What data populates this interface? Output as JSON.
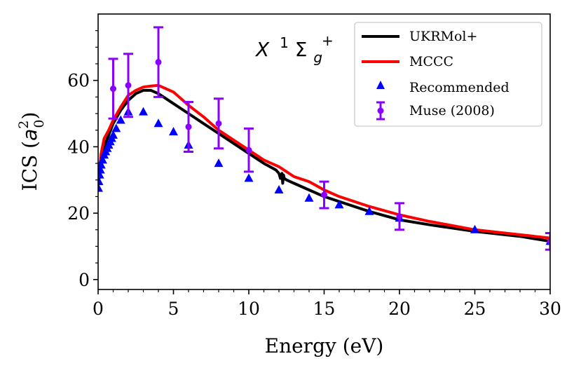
{
  "chart_data": {
    "type": "line",
    "annotation": {
      "main": "X",
      "sup1": "1",
      "sigma": "Σ",
      "sub": "g",
      "sup2": "+"
    },
    "xlabel": "Energy (eV)",
    "ylabel": {
      "prefix": "ICS (",
      "var": "a",
      "sub": "0",
      "sup": "2",
      "suffix": ")"
    },
    "xlim": [
      0,
      30
    ],
    "ylim": [
      -3,
      80
    ],
    "xticks": [
      0,
      5,
      10,
      15,
      20,
      25,
      30
    ],
    "yticks": [
      0,
      20,
      40,
      60
    ],
    "xtick_labels": [
      "0",
      "5",
      "10",
      "15",
      "20",
      "25",
      "30"
    ],
    "ytick_labels": [
      "0",
      "20",
      "40",
      "60"
    ],
    "series": [
      {
        "name": "UKRMol+",
        "kind": "line",
        "color": "#000000",
        "x": [
          0.05,
          0.2,
          0.4,
          0.7,
          1.0,
          1.5,
          2.0,
          2.5,
          3.0,
          3.5,
          4.0,
          5.0,
          6.0,
          7.0,
          8.0,
          9.0,
          10.0,
          11.0,
          11.8,
          12.0,
          12.1,
          12.2,
          12.25,
          12.3,
          12.35,
          12.5,
          13.0,
          14.0,
          15.0,
          16.0,
          18.0,
          20.0,
          22.0,
          25.0,
          28.0,
          30.0
        ],
        "y": [
          30.0,
          36.0,
          40.0,
          43.5,
          47.0,
          51.0,
          54.0,
          56.0,
          57.0,
          57.0,
          56.0,
          53.0,
          50.0,
          47.0,
          44.0,
          41.0,
          38.0,
          35.0,
          33.0,
          32.0,
          30.5,
          32.0,
          29.0,
          31.5,
          30.5,
          30.0,
          29.0,
          27.0,
          25.0,
          23.5,
          20.5,
          18.0,
          16.5,
          14.5,
          13.0,
          11.5
        ]
      },
      {
        "name": "MCCC",
        "kind": "line",
        "color": "#ff0000",
        "x": [
          0.05,
          0.2,
          0.4,
          0.7,
          1.0,
          1.5,
          2.0,
          2.5,
          3.0,
          3.5,
          4.0,
          5.0,
          6.0,
          7.0,
          8.0,
          9.0,
          10.0,
          11.0,
          12.0,
          12.5,
          13.0,
          14.0,
          15.0,
          16.0,
          18.0,
          20.0,
          22.0,
          25.0,
          28.0,
          30.0
        ],
        "y": [
          31.0,
          38.0,
          42.5,
          45.0,
          48.0,
          52.0,
          55.5,
          57.0,
          58.0,
          58.3,
          58.5,
          56.5,
          52.5,
          49.0,
          45.0,
          42.0,
          39.0,
          36.0,
          34.0,
          32.5,
          31.0,
          29.5,
          27.0,
          25.0,
          22.0,
          19.5,
          17.5,
          15.0,
          13.5,
          12.5
        ]
      },
      {
        "name": "Recommended",
        "kind": "scatter",
        "marker": "triangle",
        "color": "#0000ff",
        "x": [
          0.02,
          0.05,
          0.1,
          0.15,
          0.2,
          0.3,
          0.4,
          0.5,
          0.6,
          0.7,
          0.8,
          0.9,
          1.0,
          1.2,
          1.5,
          2.0,
          3.0,
          4.0,
          5.0,
          6.0,
          8.0,
          10.0,
          12.0,
          14.0,
          16.0,
          18.0,
          20.0,
          25.0,
          30.0
        ],
        "y": [
          27.5,
          29.5,
          31.5,
          33.0,
          34.5,
          36.0,
          37.5,
          38.5,
          39.5,
          40.5,
          41.5,
          42.5,
          43.5,
          45.5,
          48.0,
          50.5,
          50.5,
          47.0,
          44.5,
          40.5,
          35.0,
          30.5,
          27.0,
          24.5,
          22.5,
          20.5,
          18.5,
          15.0,
          11.5
        ]
      },
      {
        "name": "Muse (2008)",
        "kind": "errorbar",
        "color": "#8a00ff",
        "x": [
          1.0,
          2.0,
          4.0,
          6.0,
          8.0,
          10.0,
          15.0,
          20.0,
          30.0
        ],
        "y": [
          57.5,
          58.5,
          65.5,
          46.0,
          47.0,
          39.0,
          25.5,
          19.0,
          11.5
        ],
        "err": [
          9.0,
          9.5,
          10.5,
          7.5,
          7.5,
          6.5,
          4.0,
          4.0,
          2.5
        ]
      }
    ],
    "legend": {
      "position": "top-right",
      "entries": [
        "UKRMol+",
        "MCCC",
        "Recommended",
        "Muse (2008)"
      ]
    }
  }
}
